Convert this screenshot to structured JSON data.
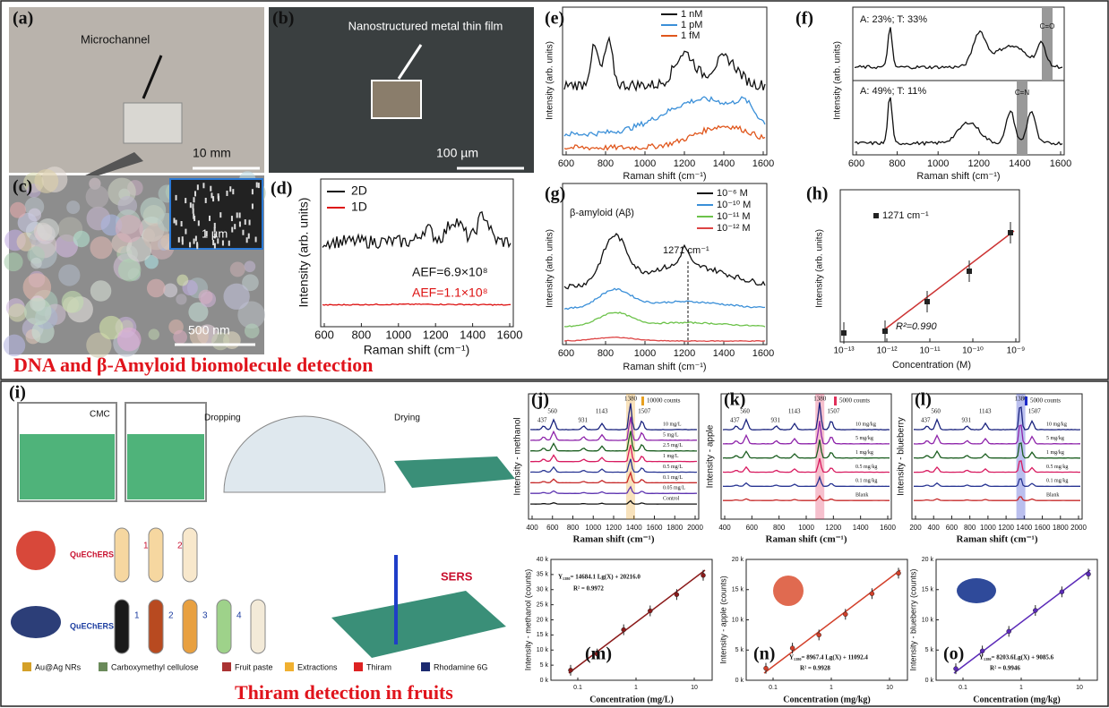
{
  "panels": {
    "a": {
      "label": "(a)",
      "annotation": "Microchannel",
      "scale": "10 mm"
    },
    "b": {
      "label": "(b)",
      "annotation": "Nanostructured metal thin film",
      "scale": "100 µm"
    },
    "c": {
      "label": "(c)",
      "inset_scale": "1 µm",
      "scale": "500 nm"
    },
    "d": {
      "label": "(d)",
      "legend": [
        "2D",
        "1D"
      ],
      "annotations": [
        "AEF=6.9×10⁸",
        "AEF=1.1×10⁸"
      ],
      "x_label": "Raman shift (cm⁻¹)",
      "y_label": "Intensity (arb. units)",
      "x_ticks": [
        "600",
        "800",
        "1000",
        "1200",
        "1400",
        "1600"
      ]
    },
    "e": {
      "label": "(e)",
      "legend": [
        "1 nM",
        "1 pM",
        "1 fM"
      ],
      "x_label": "Raman shift (cm⁻¹)",
      "y_label": "Intensity (arb. units)",
      "x_ticks": [
        "600",
        "800",
        "1000",
        "1200",
        "1400",
        "1600"
      ]
    },
    "f": {
      "label": "(f)",
      "annotations": [
        "A: 23%; T: 33%",
        "A: 49%; T: 11%",
        "C=O",
        "C=N"
      ],
      "x_label": "Raman shift (cm⁻¹)",
      "y_label": "Intensity (arb. units)",
      "x_ticks": [
        "600",
        "800",
        "1000",
        "1200",
        "1400",
        "1600"
      ]
    },
    "g": {
      "label": "(g)",
      "title": "β-amyloid (Aβ)",
      "legend": [
        "10⁻⁶ M",
        "10⁻¹⁰ M",
        "10⁻¹¹ M",
        "10⁻¹² M"
      ],
      "annotation": "1271 cm⁻¹",
      "x_label": "Raman shift (cm⁻¹)",
      "y_label": "Intensity (arb. units)",
      "x_ticks": [
        "600",
        "800",
        "1000",
        "1200",
        "1400",
        "1600"
      ]
    },
    "h": {
      "label": "(h)",
      "legend": "1271 cm⁻¹",
      "annotation": "R²=0.990",
      "x_label": "Concentration (M)",
      "y_label": "Intensity (arb. units)",
      "x_ticks": [
        "10⁻¹³",
        "10⁻¹²",
        "10⁻¹¹",
        "10⁻¹⁰",
        "10⁻⁹"
      ]
    },
    "i": {
      "label": "(i)",
      "steps": [
        "CMC",
        "Dropping",
        "Drying"
      ],
      "extraction": [
        "QuEChERS",
        "QuEChERS"
      ],
      "numbers_apple": [
        "1",
        "2"
      ],
      "numbers_blueberry": [
        "1",
        "2",
        "3",
        "4"
      ],
      "sers": "SERS",
      "legend": [
        "Au@Ag NRs",
        "Carboxymethyl cellulose",
        "Fruit paste",
        "Extractions",
        "Thiram",
        "Rhodamine 6G"
      ]
    },
    "j": {
      "label": "(j)",
      "peaks": [
        "437",
        "560",
        "931",
        "1143",
        "1380",
        "1507"
      ],
      "scale": "10000 counts",
      "levels": [
        "10 mg/L",
        "5 mg/L",
        "2.5 mg/L",
        "1 mg/L",
        "0.5 mg/L",
        "0.1 mg/L",
        "0.05 mg/L",
        "Control"
      ],
      "x_label": "Raman shift (cm⁻¹)",
      "y_label": "Intensity - methanol",
      "x_ticks": [
        "400",
        "600",
        "800",
        "1000",
        "1200",
        "1400",
        "1600",
        "1800",
        "2000"
      ]
    },
    "k": {
      "label": "(k)",
      "peaks": [
        "437",
        "560",
        "931",
        "1143",
        "1380",
        "1507"
      ],
      "scale": "5000 counts",
      "levels": [
        "10 mg/kg",
        "5 mg/kg",
        "1 mg/kg",
        "0.5 mg/kg",
        "0.1 mg/kg",
        "Blank"
      ],
      "x_label": "Raman shift (cm⁻¹)",
      "y_label": "Intensity - apple",
      "x_ticks": [
        "400",
        "600",
        "800",
        "1000",
        "1200",
        "1400",
        "1600"
      ]
    },
    "l": {
      "label": "(l)",
      "peaks": [
        "437",
        "560",
        "931",
        "1143",
        "1380",
        "1507"
      ],
      "scale": "5000 counts",
      "levels": [
        "10 mg/kg",
        "5 mg/kg",
        "1 mg/kg",
        "0.5 mg/kg",
        "0.1 mg/kg",
        "Blank"
      ],
      "x_label": "Raman shift (cm⁻¹)",
      "y_label": "Intensity - blueberry",
      "x_ticks": [
        "200",
        "400",
        "600",
        "800",
        "1000",
        "1200",
        "1400",
        "1600",
        "1800",
        "2000"
      ]
    },
    "m": {
      "label": "(m)",
      "equation": "Y₁₃₈₀= 14684.1 Lg(X) + 20216.0",
      "r2": "R² = 0.9972",
      "x_label": "Concentration (mg/L)",
      "y_label": "Intensity - methanol (counts)",
      "y_ticks": [
        "0 k",
        "5 k",
        "10 k",
        "15 k",
        "20 k",
        "25 k",
        "30 k",
        "35 k",
        "40 k"
      ],
      "x_ticks": [
        "0.1",
        "1",
        "10"
      ]
    },
    "n": {
      "label": "(n)",
      "equation": "Y₁₃₈₀= 8967.4 Lg(X) + 11092.4",
      "r2": "R² = 0.9928",
      "x_label": "Concentration (mg/kg)",
      "y_label": "Intensity - apple (counts)",
      "y_ticks": [
        "0 k",
        "5 k",
        "10 k",
        "15 k",
        "20 k"
      ],
      "x_ticks": [
        "0.1",
        "1",
        "10"
      ]
    },
    "o": {
      "label": "(o)",
      "equation": "Y₁₃₈₀= 8203.6Lg(X) + 9085.6",
      "r2": "R² = 0.9946",
      "x_label": "Concentration (mg/kg)",
      "y_label": "Intensity - blueberry (counts)",
      "y_ticks": [
        "0 k",
        "5 k",
        "10 k",
        "15 k",
        "20 k"
      ],
      "x_ticks": [
        "0.1",
        "1",
        "10"
      ]
    }
  },
  "captions": [
    "DNA and β-Amyloid biomolecule detection",
    "Thiram detection in fruits"
  ]
}
